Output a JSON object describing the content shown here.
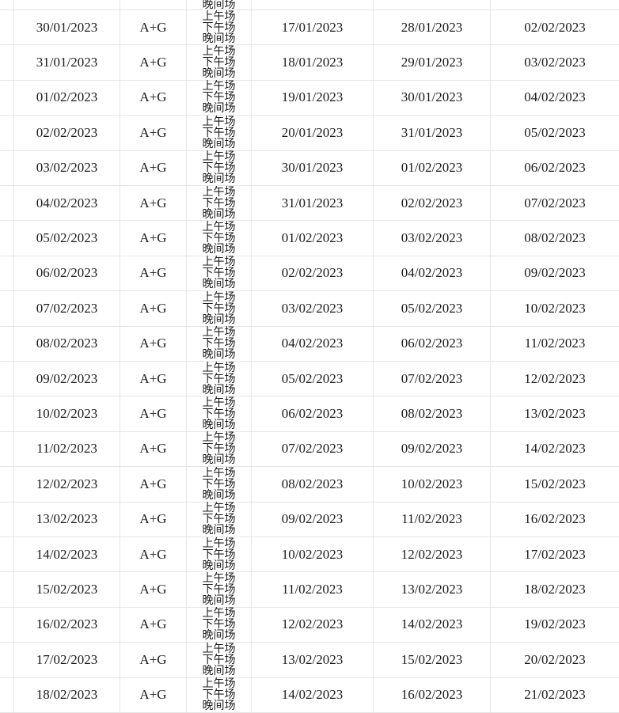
{
  "sessions": [
    "上午场",
    "下午场",
    "晚间场"
  ],
  "partial_top_session": "晚间场",
  "rows": [
    {
      "date": "30/01/2023",
      "type": "A+G",
      "d1": "17/01/2023",
      "d2": "28/01/2023",
      "d3": "02/02/2023"
    },
    {
      "date": "31/01/2023",
      "type": "A+G",
      "d1": "18/01/2023",
      "d2": "29/01/2023",
      "d3": "03/02/2023"
    },
    {
      "date": "01/02/2023",
      "type": "A+G",
      "d1": "19/01/2023",
      "d2": "30/01/2023",
      "d3": "04/02/2023"
    },
    {
      "date": "02/02/2023",
      "type": "A+G",
      "d1": "20/01/2023",
      "d2": "31/01/2023",
      "d3": "05/02/2023"
    },
    {
      "date": "03/02/2023",
      "type": "A+G",
      "d1": "30/01/2023",
      "d2": "01/02/2023",
      "d3": "06/02/2023"
    },
    {
      "date": "04/02/2023",
      "type": "A+G",
      "d1": "31/01/2023",
      "d2": "02/02/2023",
      "d3": "07/02/2023"
    },
    {
      "date": "05/02/2023",
      "type": "A+G",
      "d1": "01/02/2023",
      "d2": "03/02/2023",
      "d3": "08/02/2023"
    },
    {
      "date": "06/02/2023",
      "type": "A+G",
      "d1": "02/02/2023",
      "d2": "04/02/2023",
      "d3": "09/02/2023"
    },
    {
      "date": "07/02/2023",
      "type": "A+G",
      "d1": "03/02/2023",
      "d2": "05/02/2023",
      "d3": "10/02/2023"
    },
    {
      "date": "08/02/2023",
      "type": "A+G",
      "d1": "04/02/2023",
      "d2": "06/02/2023",
      "d3": "11/02/2023"
    },
    {
      "date": "09/02/2023",
      "type": "A+G",
      "d1": "05/02/2023",
      "d2": "07/02/2023",
      "d3": "12/02/2023"
    },
    {
      "date": "10/02/2023",
      "type": "A+G",
      "d1": "06/02/2023",
      "d2": "08/02/2023",
      "d3": "13/02/2023"
    },
    {
      "date": "11/02/2023",
      "type": "A+G",
      "d1": "07/02/2023",
      "d2": "09/02/2023",
      "d3": "14/02/2023"
    },
    {
      "date": "12/02/2023",
      "type": "A+G",
      "d1": "08/02/2023",
      "d2": "10/02/2023",
      "d3": "15/02/2023"
    },
    {
      "date": "13/02/2023",
      "type": "A+G",
      "d1": "09/02/2023",
      "d2": "11/02/2023",
      "d3": "16/02/2023"
    },
    {
      "date": "14/02/2023",
      "type": "A+G",
      "d1": "10/02/2023",
      "d2": "12/02/2023",
      "d3": "17/02/2023"
    },
    {
      "date": "15/02/2023",
      "type": "A+G",
      "d1": "11/02/2023",
      "d2": "13/02/2023",
      "d3": "18/02/2023"
    },
    {
      "date": "16/02/2023",
      "type": "A+G",
      "d1": "12/02/2023",
      "d2": "14/02/2023",
      "d3": "19/02/2023"
    },
    {
      "date": "17/02/2023",
      "type": "A+G",
      "d1": "13/02/2023",
      "d2": "15/02/2023",
      "d3": "20/02/2023"
    },
    {
      "date": "18/02/2023",
      "type": "A+G",
      "d1": "14/02/2023",
      "d2": "16/02/2023",
      "d3": "21/02/2023"
    }
  ]
}
